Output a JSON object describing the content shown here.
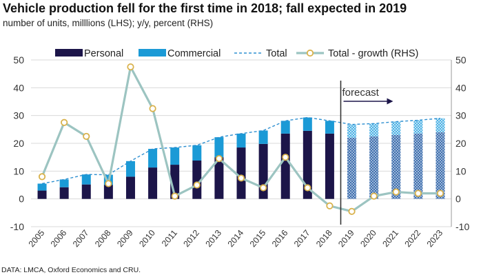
{
  "title": "Vehicle production fell for the first time in 2018; fall expected in 2019",
  "subtitle": "number of units, milllions (LHS); y/y, percent (RHS)",
  "source": "DATA: LMCA, Oxford Economics and CRU.",
  "chart_data": {
    "type": "bar",
    "title": "Vehicle production fell for the first time in 2018; fall expected in 2019",
    "subtitle": "number of units, milllions (LHS); y/y, percent (RHS)",
    "categories": [
      "2005",
      "2006",
      "2007",
      "2008",
      "2009",
      "2010",
      "2011",
      "2012",
      "2013",
      "2014",
      "2015",
      "2016",
      "2017",
      "2018",
      "2019",
      "2020",
      "2021",
      "2022",
      "2023"
    ],
    "stacked": true,
    "series": [
      {
        "name": "Personal",
        "kind": "bar",
        "axis": "left",
        "color": "#1c1549",
        "values": [
          3.0,
          4.2,
          5.2,
          5.0,
          8.0,
          11.3,
          12.3,
          13.8,
          15.0,
          18.5,
          19.8,
          23.5,
          24.5,
          23.5,
          22.0,
          22.5,
          23.0,
          23.5,
          24.0
        ]
      },
      {
        "name": "Commercial",
        "kind": "bar",
        "axis": "left",
        "color": "#1b9ad6",
        "values": [
          2.5,
          2.8,
          3.6,
          3.7,
          5.6,
          6.7,
          6.2,
          5.5,
          7.2,
          5.0,
          4.8,
          4.6,
          4.8,
          4.6,
          4.8,
          4.6,
          4.8,
          4.8,
          5.0
        ]
      },
      {
        "name": "Total",
        "kind": "line",
        "style": "dashed",
        "axis": "left",
        "color": "#2d8fd0",
        "values": [
          5.5,
          7.0,
          8.8,
          8.7,
          13.6,
          18.0,
          18.5,
          19.3,
          22.2,
          23.5,
          24.6,
          28.1,
          29.3,
          28.1,
          26.8,
          27.1,
          27.8,
          28.3,
          29.0
        ]
      },
      {
        "name": "Total - growth (RHS)",
        "kind": "line",
        "axis": "right",
        "color": "#9cc4c1",
        "marker_color": "#d9b24c",
        "values": [
          8.0,
          27.5,
          22.5,
          5.5,
          47.5,
          32.5,
          1.0,
          5.0,
          14.5,
          7.5,
          4.0,
          15.0,
          4.0,
          -2.5,
          -4.5,
          1.0,
          2.5,
          2.0,
          2.0
        ]
      }
    ],
    "forecast_start": "2019",
    "forecast_label": "forecast",
    "xlabel": "",
    "ylabel_left": "",
    "ylabel_right": "",
    "ylim": [
      -10,
      50
    ],
    "y_ticks": [
      -10,
      0,
      10,
      20,
      30,
      40,
      50
    ],
    "grid": true,
    "legend_position": "top"
  }
}
